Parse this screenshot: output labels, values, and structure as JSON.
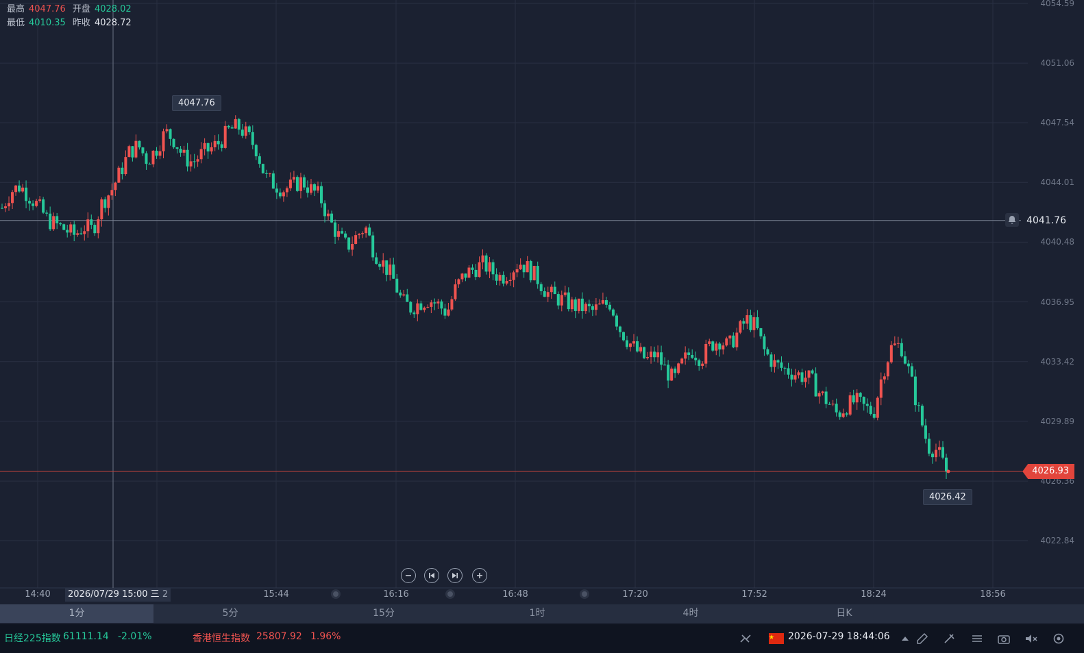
{
  "ohlc": {
    "high_label": "最高",
    "high_value": "4047.76",
    "open_label": "开盘",
    "open_value": "4028.02",
    "low_label": "最低",
    "low_value": "4010.35",
    "prev_close_label": "昨收",
    "prev_close_value": "4028.72"
  },
  "chart_data": {
    "type": "candlestick",
    "timeframe": "1分",
    "ylim": [
      4021.5,
      4054.6
    ],
    "price_ticks": [
      "4054.59",
      "4051.06",
      "4047.54",
      "4044.01",
      "4040.48",
      "4036.95",
      "4033.42",
      "4029.89",
      "4026.36",
      "4022.84"
    ],
    "time_ticks": [
      "14:40",
      "15:44",
      "16:16",
      "16:48",
      "17:20",
      "17:52",
      "18:24",
      "18:56"
    ],
    "crosshair_time": "2026/07/29 15:00 三",
    "crosshair_time_suffix": "2",
    "high_marker": "4047.76",
    "low_marker": "4026.42",
    "alert_price": "4041.76",
    "current_price": "4026.93",
    "up_color": "#ef5350",
    "down_color": "#26c99a",
    "close_path": [
      4042.5,
      4043.5,
      4043.8,
      4043.2,
      4042.6,
      4041.8,
      4041.5,
      4041.2,
      4040.9,
      4041.4,
      4041.2,
      4042.8,
      4043.5,
      4044.6,
      4045.8,
      4046.2,
      4045.3,
      4046.0,
      4047.0,
      4046.5,
      4045.5,
      4045.2,
      4045.7,
      4046.0,
      4046.4,
      4047.1,
      4047.3,
      4046.8,
      4046.0,
      4044.3,
      4043.9,
      4043.6,
      4043.8,
      4044.1,
      4043.6,
      4043.2,
      4041.8,
      4040.9,
      4040.2,
      4040.8,
      4041.4,
      4039.9,
      4039.2,
      4038.4,
      4037.0,
      4036.6,
      4036.9,
      4037.1,
      4036.8,
      4036.3,
      4037.8,
      4038.6,
      4038.9,
      4039.2,
      4038.7,
      4038.4,
      4038.8,
      4039.3,
      4038.9,
      4038.3,
      4037.5,
      4037.2,
      4037.0,
      4036.7,
      4036.6,
      4036.4,
      4036.7,
      4036.9,
      4035.4,
      4034.6,
      4034.0,
      4033.5,
      4033.9,
      4033.0,
      4032.3,
      4033.4,
      4034.1,
      4033.6,
      4034.4,
      4034.7,
      4034.3,
      4035.1,
      4035.9,
      4035.5,
      4034.0,
      4033.3,
      4033.0,
      4032.8,
      4032.6,
      4032.4,
      4031.6,
      4031.0,
      4030.3,
      4030.8,
      4031.1,
      4030.7,
      4030.4,
      4032.8,
      4034.3,
      4034.4,
      4032.6,
      4030.4,
      4028.4,
      4028.2,
      4026.93
    ]
  },
  "chart_controls": {
    "zoom_out": "−",
    "jump_start": "⏮",
    "jump_end": "⏭",
    "zoom_in": "+"
  },
  "tabs": [
    "1分",
    "5分",
    "15分",
    "1时",
    "4时",
    "日K"
  ],
  "status_bar": {
    "index1_name": "日经225指数",
    "index1_value": "61111.14",
    "index1_change": "-2.01%",
    "index2_name": "香港恒生指数",
    "index2_value": "25807.92",
    "index2_change": "1.96%",
    "datetime": "2026-07-29 18:44:06"
  },
  "icons": [
    "bell-icon",
    "connection-icon",
    "china-flag-icon",
    "caret-up-icon",
    "edit-icon",
    "draw-icon",
    "menu-icon",
    "camera-icon",
    "mute-icon",
    "settings-icon"
  ]
}
